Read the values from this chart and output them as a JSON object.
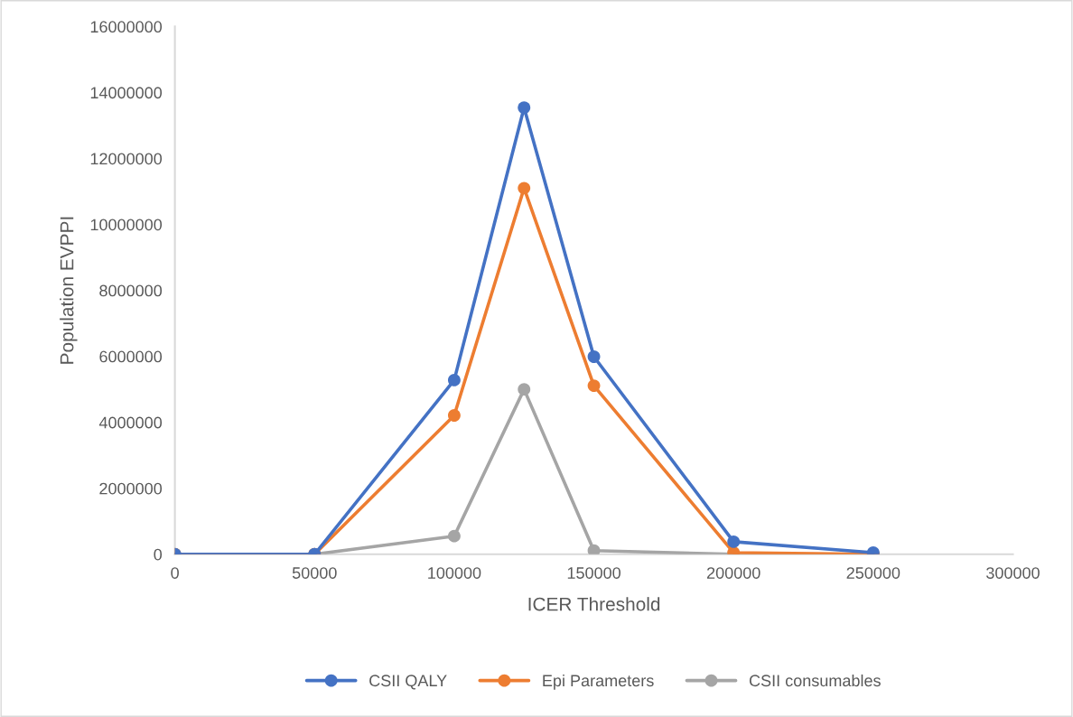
{
  "chart_data": {
    "type": "line",
    "xlabel": "ICER Threshold",
    "ylabel": "Population EVPPI",
    "x": [
      0,
      50000,
      100000,
      125000,
      150000,
      200000,
      250000
    ],
    "series": [
      {
        "name": "CSII QALY",
        "color": "#4472c4",
        "values": [
          0,
          0,
          5280000,
          13540000,
          5990000,
          380000,
          50000
        ]
      },
      {
        "name": "Epi Parameters",
        "color": "#ed7d31",
        "values": [
          0,
          0,
          4210000,
          11100000,
          5110000,
          50000,
          0
        ]
      },
      {
        "name": "CSII consumables",
        "color": "#a5a5a5",
        "values": [
          0,
          0,
          550000,
          5000000,
          110000,
          0,
          0
        ]
      }
    ],
    "xlim": [
      0,
      300000
    ],
    "xticks": [
      0,
      50000,
      100000,
      150000,
      200000,
      250000,
      300000
    ],
    "ylim": [
      0,
      16000000
    ],
    "yticks": [
      0,
      2000000,
      4000000,
      6000000,
      8000000,
      10000000,
      12000000,
      14000000,
      16000000
    ],
    "grid": false,
    "legend": "bottom",
    "marker": "circle",
    "line_style": "solid"
  }
}
